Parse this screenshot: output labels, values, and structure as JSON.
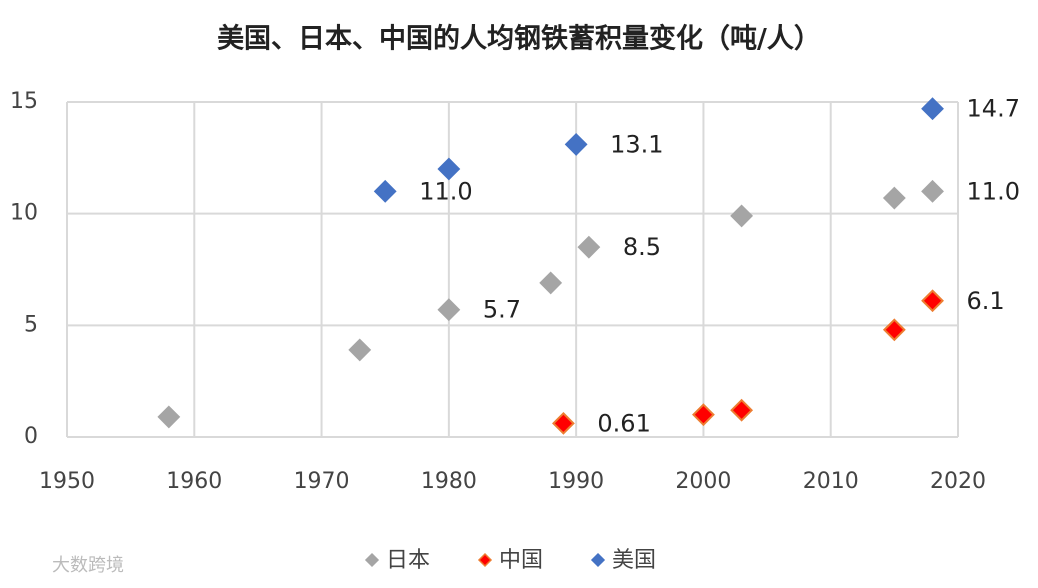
{
  "chart_data": {
    "type": "scatter",
    "title": "美国、日本、中国的人均钢铁蓄积量变化（吨/人）",
    "xlim": [
      1950,
      2020
    ],
    "xticks": [
      1950,
      1960,
      1970,
      1980,
      1990,
      2000,
      2010,
      2020
    ],
    "ylim": [
      0,
      15
    ],
    "yticks": [
      0,
      5,
      10,
      15
    ],
    "grid": true,
    "legend": "bottom",
    "series": [
      {
        "name": "日本",
        "color": "#a5a5a5",
        "stroke": "#a5a5a5",
        "x": [
          1958,
          1973,
          1980,
          1988,
          1991,
          2003,
          2015,
          2018
        ],
        "values": [
          0.9,
          3.9,
          5.7,
          6.9,
          8.5,
          9.9,
          10.7,
          11.0
        ],
        "value_labels": [
          null,
          null,
          "5.7",
          null,
          "8.5",
          null,
          null,
          "11.0"
        ]
      },
      {
        "name": "中国",
        "color": "#ff0000",
        "stroke": "#ed7d31",
        "x": [
          1989,
          2000,
          2003,
          2015,
          2018
        ],
        "values": [
          0.61,
          1.0,
          1.2,
          4.8,
          6.1
        ],
        "value_labels": [
          "0.61",
          null,
          null,
          null,
          "6.1"
        ]
      },
      {
        "name": "美国",
        "color": "#4472c4",
        "stroke": "#4472c4",
        "x": [
          1975,
          1980,
          1990,
          2018
        ],
        "values": [
          11.0,
          12.0,
          13.1,
          14.7
        ],
        "value_labels": [
          "11.0",
          null,
          "13.1",
          "14.7"
        ]
      }
    ],
    "watermark": "大数跨境"
  }
}
